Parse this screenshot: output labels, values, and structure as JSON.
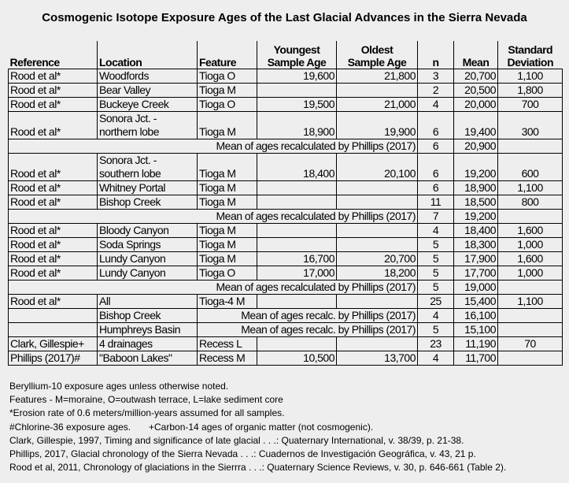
{
  "title": "Cosmogenic Isotope Exposure Ages of the Last Glacial Advances in the Sierra Nevada",
  "headers": {
    "reference": "Reference",
    "location": "Location",
    "feature": "Feature",
    "youngest": [
      "Youngest",
      "Sample Age"
    ],
    "oldest": [
      "Oldest",
      "Sample Age"
    ],
    "n": "n",
    "mean": "Mean",
    "sd": [
      "Standard",
      "Deviation"
    ]
  },
  "rows": [
    {
      "type": "data",
      "reference": "Rood et al*",
      "location": "Woodfords",
      "feature": "Tioga O",
      "youngest": "19,600",
      "oldest": "21,800",
      "n": "3",
      "mean": "20,700",
      "sd": "1,100"
    },
    {
      "type": "data",
      "reference": "Rood et al*",
      "location": "Bear Valley",
      "feature": "Tioga M",
      "youngest": "",
      "oldest": "",
      "n": "2",
      "mean": "20,500",
      "sd": "1,800"
    },
    {
      "type": "data",
      "reference": "Rood et al*",
      "location": "Buckeye Creek",
      "feature": "Tioga O",
      "youngest": "19,500",
      "oldest": "21,000",
      "n": "4",
      "mean": "20,000",
      "sd": "700"
    },
    {
      "type": "tall",
      "reference": "Rood et al*",
      "location": "Sonora Jct. - northern lobe",
      "feature": "Tioga M",
      "youngest": "18,900",
      "oldest": "19,900",
      "n": "6",
      "mean": "19,400",
      "sd": "300"
    },
    {
      "type": "mean",
      "label": "Mean of ages recalculated by Phillips (2017)",
      "n": "6",
      "mean": "20,900"
    },
    {
      "type": "tall",
      "reference": "Rood et al*",
      "location": "Sonora Jct. - southern lobe",
      "feature": "Tioga M",
      "youngest": "18,400",
      "oldest": "20,100",
      "n": "6",
      "mean": "19,200",
      "sd": "600"
    },
    {
      "type": "data",
      "reference": "Rood et al*",
      "location": "Whitney Portal",
      "feature": "Tioga M",
      "youngest": "",
      "oldest": "",
      "n": "6",
      "mean": "18,900",
      "sd": "1,100"
    },
    {
      "type": "data",
      "reference": "Rood et al*",
      "location": "Bishop Creek",
      "feature": "Tioga M",
      "youngest": "",
      "oldest": "",
      "n": "11",
      "mean": "18,500",
      "sd": "800"
    },
    {
      "type": "mean",
      "label": "Mean of ages recalculated by Phillips (2017)",
      "n": "7",
      "mean": "19,200"
    },
    {
      "type": "data",
      "reference": "Rood et al*",
      "location": "Bloody Canyon",
      "feature": "Tioga M",
      "youngest": "",
      "oldest": "",
      "n": "4",
      "mean": "18,400",
      "sd": "1,600"
    },
    {
      "type": "data",
      "reference": "Rood et al*",
      "location": "Soda Springs",
      "feature": "Tioga M",
      "youngest": "",
      "oldest": "",
      "n": "5",
      "mean": "18,300",
      "sd": "1,000"
    },
    {
      "type": "data",
      "reference": "Rood et al*",
      "location": "Lundy Canyon",
      "feature": "Tioga M",
      "youngest": "16,700",
      "oldest": "20,700",
      "n": "5",
      "mean": "17,900",
      "sd": "1,600"
    },
    {
      "type": "data",
      "reference": "Rood et al*",
      "location": "Lundy Canyon",
      "feature": "Tioga O",
      "youngest": "17,000",
      "oldest": "18,200",
      "n": "5",
      "mean": "17,700",
      "sd": "1,000"
    },
    {
      "type": "mean",
      "label": "Mean of ages recalculated by Phillips (2017)",
      "n": "5",
      "mean": "19,000"
    },
    {
      "type": "data",
      "reference": "Rood et al*",
      "location": "All",
      "feature": "Tioga-4 M",
      "youngest": "",
      "oldest": "",
      "n": "25",
      "mean": "15,400",
      "sd": "1,100"
    },
    {
      "type": "submean",
      "location": "Bishop Creek",
      "label": "Mean of ages recalc. by Phillips (2017)",
      "n": "4",
      "mean": "16,100"
    },
    {
      "type": "submean",
      "location": "Humphreys Basin",
      "label": "Mean of ages recalc. by Phillips (2017)",
      "n": "5",
      "mean": "15,100"
    },
    {
      "type": "data",
      "reference": "Clark, Gillespie+",
      "location": "4 drainages",
      "feature": "Recess L",
      "youngest": "",
      "oldest": "",
      "n": "23",
      "mean": "11,190",
      "sd": "70"
    },
    {
      "type": "data",
      "reference": "Phillips (2017)#",
      "location": "\"Baboon Lakes\"",
      "feature": "Recess M",
      "youngest": "10,500",
      "oldest": "13,700",
      "n": "4",
      "mean": "11,700",
      "sd": ""
    }
  ],
  "notes": {
    "n0": "Beryllium-10 exposure ages unless otherwise noted.",
    "n1": "Features - M=moraine, O=outwash terrace, L=lake sediment core",
    "n2": "*Erosion rate of 0.6 meters/million-years assumed for all samples.",
    "n3a": "#Chlorine-36 exposure ages.",
    "n3b": "+Carbon-14 ages of organic matter (not cosmogenic).",
    "n4": "Clark, Gillespie, 1997, Timing and significance of late glacial . . .: Quaternary International, v. 38/39, p. 21-38.",
    "n5": "Phillips, 2017, Glacial chronology of the Sierra Nevada . . .: Cuadernos de Investigación Geográfica, v. 43, 21 p.",
    "n6": "Rood et al, 2011, Chronology of glaciations in the Sierrra . . .: Quaternary Science Reviews, v. 30, p. 646-661 (Table 2)."
  }
}
